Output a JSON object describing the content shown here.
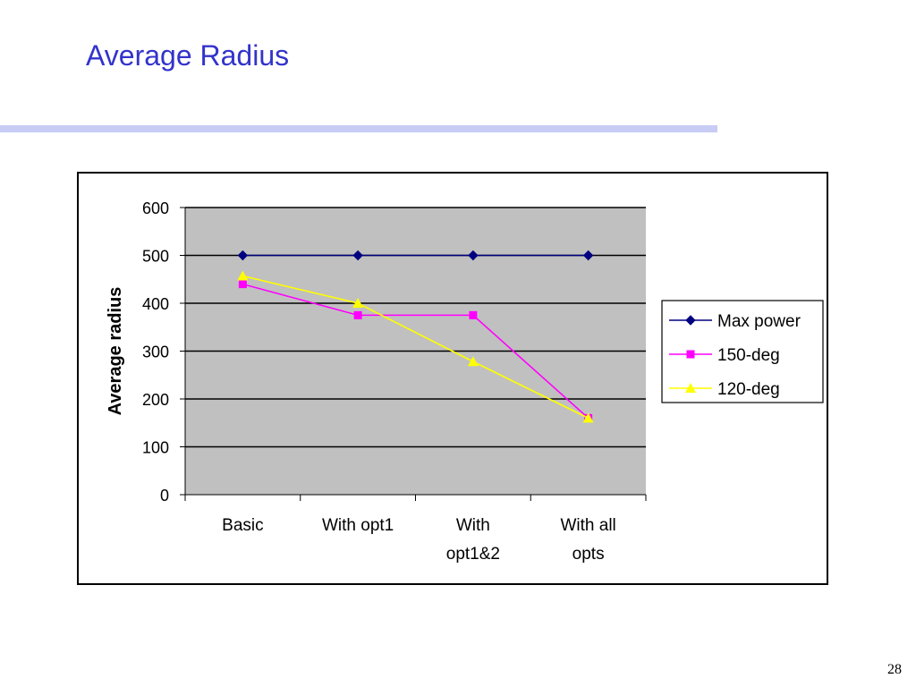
{
  "slide": {
    "title": "Average Radius",
    "page_number": "28"
  },
  "colors": {
    "title": "#3333cc",
    "rule": "#c8ccf5",
    "plot_bg": "#c0c0c0"
  },
  "chart_data": {
    "type": "line",
    "title": "",
    "xlabel": "",
    "ylabel": "Average radius",
    "categories": [
      [
        "Basic"
      ],
      [
        "With opt1"
      ],
      [
        "With",
        "opt1&2"
      ],
      [
        "With all",
        "opts"
      ]
    ],
    "ylim": [
      0,
      600
    ],
    "yticks": [
      0,
      100,
      200,
      300,
      400,
      500,
      600
    ],
    "grid": true,
    "legend_position": "right",
    "series": [
      {
        "name": "Max power",
        "color": "#000080",
        "marker": "diamond",
        "values": [
          500,
          500,
          500,
          500
        ]
      },
      {
        "name": "150-deg",
        "color": "#ff00ff",
        "marker": "square",
        "values": [
          440,
          375,
          375,
          160
        ]
      },
      {
        "name": "120-deg",
        "color": "#ffff00",
        "marker": "triangle",
        "values": [
          457,
          400,
          278,
          160
        ]
      }
    ]
  }
}
